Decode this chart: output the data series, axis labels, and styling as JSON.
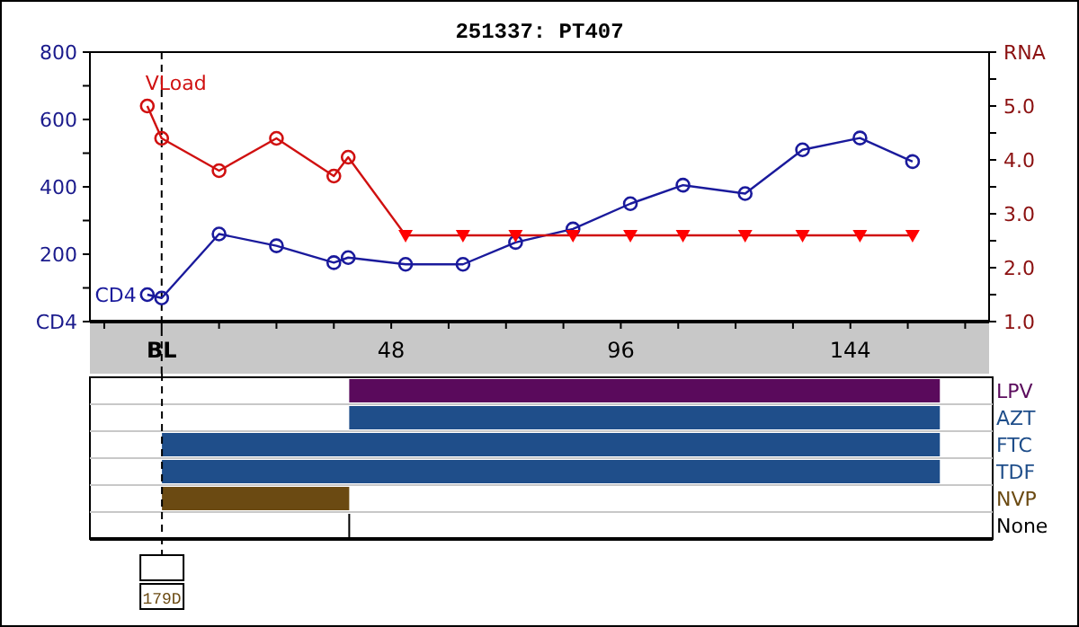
{
  "chart_data": [
    {
      "type": "line",
      "title": "251337: PT407",
      "xlim": [
        -15,
        173
      ],
      "xticks": [
        {
          "value": -12,
          "label": null
        },
        {
          "value": 0,
          "label": "BL"
        },
        {
          "value": 12,
          "label": null
        },
        {
          "value": 24,
          "label": null
        },
        {
          "value": 36,
          "label": null
        },
        48,
        {
          "value": 60,
          "label": null
        },
        {
          "value": 72,
          "label": null
        },
        {
          "value": 84,
          "label": null
        },
        96,
        {
          "value": 108,
          "label": null
        },
        {
          "value": 120,
          "label": null
        },
        {
          "value": 132,
          "label": null
        },
        144,
        {
          "value": 156,
          "label": null
        },
        {
          "value": 168,
          "label": null
        }
      ],
      "ylim": [
        0,
        800
      ],
      "yticks": [
        {
          "value": 0,
          "label": "CD4"
        },
        {
          "value": 100,
          "label": null
        },
        200,
        {
          "value": 300,
          "label": null
        },
        400,
        {
          "value": 500,
          "label": null
        },
        600,
        {
          "value": 700,
          "label": null
        },
        800
      ],
      "y2lim": [
        1,
        6
      ],
      "y2ticks": [
        {
          "value": 1,
          "label": "1.0"
        },
        {
          "value": 1.5,
          "label": null
        },
        {
          "value": 2,
          "label": "2.0"
        },
        {
          "value": 2.5,
          "label": null
        },
        {
          "value": 3,
          "label": "3.0"
        },
        {
          "value": 3.5,
          "label": null
        },
        {
          "value": 4,
          "label": "4.0"
        },
        {
          "value": 4.5,
          "label": null
        },
        {
          "value": 5,
          "label": "5.0"
        },
        {
          "value": 5.5,
          "label": null
        },
        {
          "value": 6,
          "label": "RNA"
        }
      ],
      "series": [
        {
          "name": "CD4",
          "type": "line",
          "marker": "circle",
          "color": "#1a1a9c",
          "x": [
            -3,
            0,
            12,
            24,
            36,
            39,
            51,
            63,
            74,
            86,
            98,
            109,
            122,
            134,
            146,
            157
          ],
          "values": [
            80,
            70,
            260,
            225,
            175,
            190,
            170,
            170,
            235,
            275,
            350,
            405,
            380,
            510,
            545,
            475
          ]
        },
        {
          "name": "VLoad",
          "type": "line",
          "marker": "none",
          "axis": "y2",
          "color": "#d01010",
          "x": [
            -3,
            0,
            12,
            24,
            36,
            39,
            51,
            63,
            74,
            86,
            98,
            109,
            122,
            134,
            146,
            157
          ],
          "values": [
            5.0,
            4.4,
            3.8,
            4.4,
            3.7,
            4.05,
            2.6,
            2.6,
            2.6,
            2.6,
            2.6,
            2.6,
            2.6,
            2.6,
            2.6,
            2.6
          ]
        },
        {
          "type": "scatter",
          "marker": "circle",
          "axis": "y2",
          "color": "#d01010",
          "x": [
            -3,
            0,
            12,
            24,
            36,
            39
          ],
          "values": [
            5.0,
            4.4,
            3.8,
            4.4,
            3.7,
            4.05
          ]
        },
        {
          "type": "scatter",
          "marker": "triangle",
          "axis": "y2",
          "color": "#ff0000",
          "x": [
            51,
            63,
            74,
            86,
            98,
            109,
            122,
            134,
            146,
            157
          ],
          "values": [
            2.6,
            2.6,
            2.6,
            2.6,
            2.6,
            2.6,
            2.6,
            2.6,
            2.6,
            2.6
          ]
        }
      ],
      "ref_lines": [
        {
          "axis": "x",
          "value": 0,
          "color": "#000000",
          "line_style": "dashed"
        }
      ]
    },
    {
      "type": "bar",
      "orientation": "horizontal",
      "categories": [
        "LPV",
        "AZT",
        "FTC",
        "TDF",
        "NVP",
        "None"
      ],
      "values": [
        123,
        123,
        162,
        162,
        39,
        null
      ],
      "base": [
        39,
        39,
        0,
        0,
        0,
        null
      ],
      "colors": [
        "#5a0a5c",
        "#1f4e8a",
        "#1f4e8a",
        "#1f4e8a",
        "#6b4a12",
        "#000000"
      ],
      "xlim": [
        -15,
        173
      ],
      "tick_labels": "y",
      "grid": "y",
      "ref_lines": [
        {
          "axis": "x",
          "value": 0,
          "color": "#000000",
          "line_style": "dashed",
          "label": "179D"
        }
      ]
    }
  ]
}
